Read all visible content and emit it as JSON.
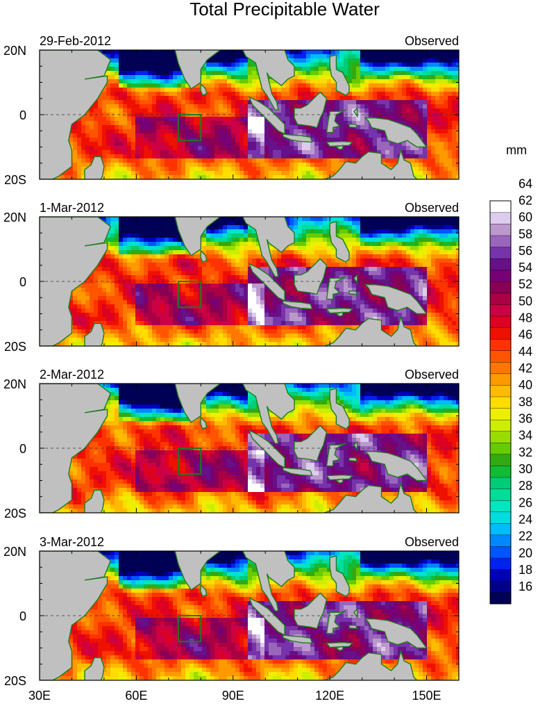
{
  "chart_data": {
    "type": "heatmap",
    "title": "Total Precipitable Water",
    "units": "mm",
    "x_axis": {
      "ticks": [
        "30E",
        "60E",
        "90E",
        "120E",
        "150E"
      ],
      "range": [
        30,
        160
      ]
    },
    "y_axis": {
      "ticks": [
        "20N",
        "0",
        "20S"
      ],
      "range": [
        -20,
        20
      ]
    },
    "panels": [
      {
        "date": "29-Feb-2012",
        "label": "Observed"
      },
      {
        "date": "1-Mar-2012",
        "label": "Observed"
      },
      {
        "date": "2-Mar-2012",
        "label": "Observed"
      },
      {
        "date": "3-Mar-2012",
        "label": "Observed"
      }
    ],
    "colorbar": {
      "levels": [
        "16",
        "18",
        "20",
        "22",
        "24",
        "26",
        "28",
        "30",
        "32",
        "34",
        "36",
        "38",
        "40",
        "42",
        "44",
        "46",
        "48",
        "50",
        "52",
        "54",
        "56",
        "58",
        "60",
        "62",
        "64"
      ],
      "colors": [
        "#000055",
        "#000088",
        "#0000bb",
        "#0022ee",
        "#0055ff",
        "#0088ff",
        "#00bbff",
        "#00dddd",
        "#00e6c0",
        "#00dd99",
        "#00cc77",
        "#11bb33",
        "#33aa11",
        "#66cc00",
        "#99dd00",
        "#ccee00",
        "#eeee00",
        "#ffdd00",
        "#ffbb00",
        "#ff9900",
        "#ff7700",
        "#ff5500",
        "#ff3300",
        "#ee1100",
        "#dd0022",
        "#cc0044",
        "#aa0044",
        "#880055",
        "#770077",
        "#661188",
        "#7733aa",
        "#9966bb",
        "#bb99cc",
        "#ddccee",
        "#ffffff"
      ]
    }
  }
}
